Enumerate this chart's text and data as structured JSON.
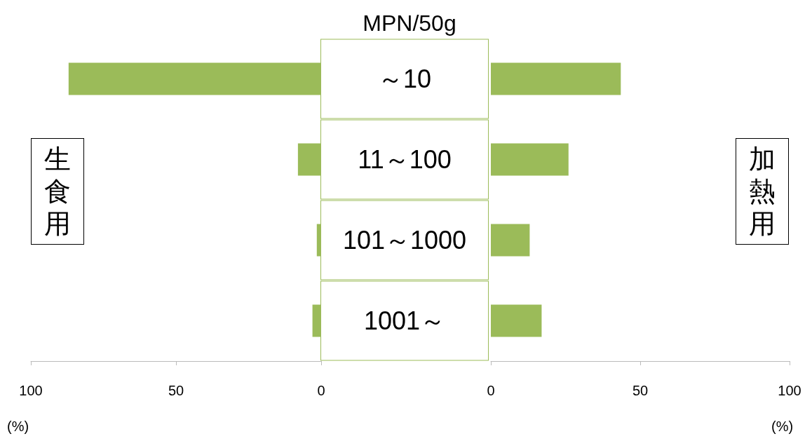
{
  "chart_data": [
    {
      "type": "bar",
      "orientation": "horizontal",
      "title": "MPN/50g",
      "ylabel": "生食用",
      "xlabel": "(%)",
      "categories": [
        "～10",
        "11～100",
        "101～1000",
        "1001～"
      ],
      "values": [
        87,
        8,
        1.5,
        3
      ],
      "color": "#9bbb59",
      "xlim": [
        100,
        0
      ],
      "xticks": [
        100,
        50,
        0
      ]
    },
    {
      "type": "bar",
      "orientation": "horizontal",
      "ylabel": "加熱用",
      "xlabel": "(%)",
      "categories": [
        "～10",
        "11～100",
        "101～1000",
        "1001～"
      ],
      "values": [
        43.5,
        26,
        13,
        17
      ],
      "color": "#9bbb59",
      "xlim": [
        0,
        100
      ],
      "xticks": [
        0,
        50,
        100
      ],
      "tick_labels": "x"
    }
  ]
}
